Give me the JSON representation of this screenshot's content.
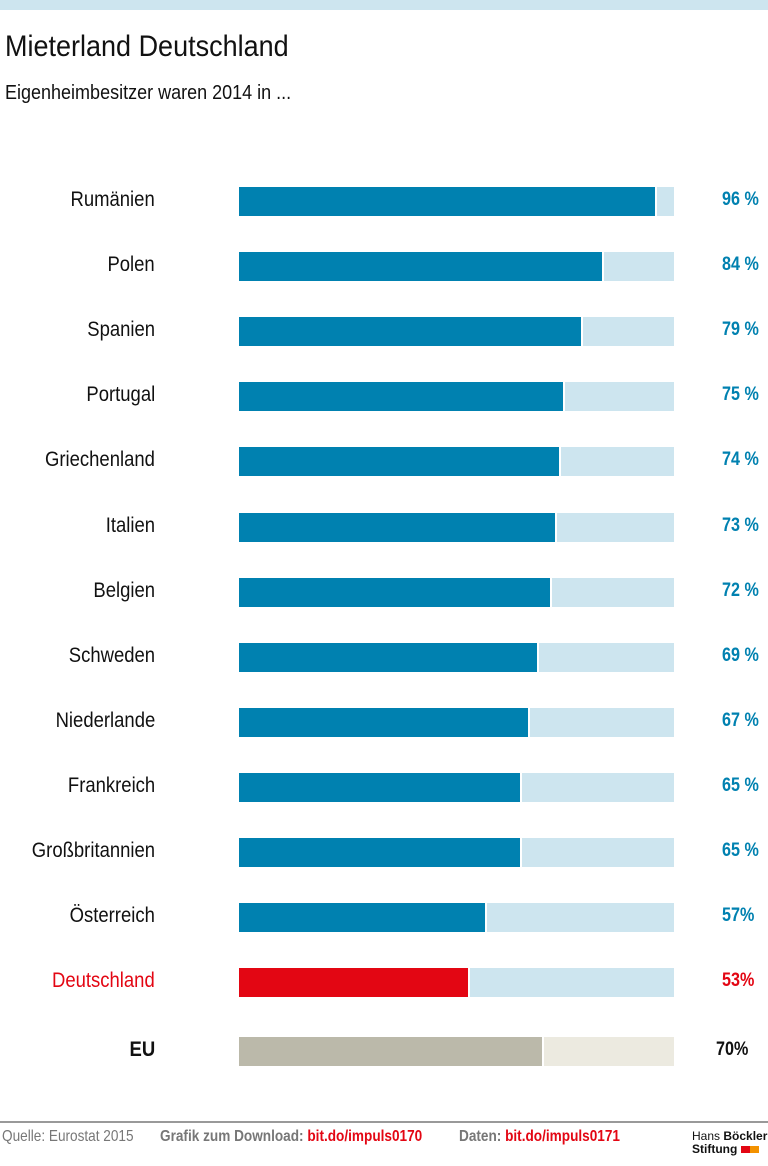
{
  "title": "Mieterland Deutschland",
  "subtitle": "Eigenheimbesitzer waren 2014 in ...",
  "chart_data": {
    "type": "bar",
    "orientation": "horizontal",
    "title": "Mieterland Deutschland",
    "subtitle": "Eigenheimbesitzer waren 2014 in ...",
    "xlim": [
      0,
      100
    ],
    "categories": [
      "Rumänien",
      "Polen",
      "Spanien",
      "Portugal",
      "Griechenland",
      "Italien",
      "Belgien",
      "Schweden",
      "Niederlande",
      "Frankreich",
      "Großbritannien",
      "Österreich",
      "Deutschland",
      "EU"
    ],
    "values": [
      96,
      84,
      79,
      75,
      74,
      73,
      72,
      69,
      67,
      65,
      65,
      57,
      53,
      70
    ],
    "labels": [
      "96 %",
      "84 %",
      "79 %",
      "75 %",
      "74 %",
      "73 %",
      "72 %",
      "69 %",
      "67 %",
      "65 %",
      "65 %",
      "57%",
      "53%",
      "70%"
    ],
    "colors": {
      "default": "#0081b0",
      "default_bg": "#cde5ef",
      "highlight": "#e30613",
      "highlight_bg": "#cde5ef",
      "eu": "#bbb9aa",
      "eu_bg": "#eceae0"
    }
  },
  "footer": {
    "source": "Quelle: Eurostat 2015",
    "download_label": "Grafik zum Download:",
    "download_link": "bit.do/impuls0170",
    "data_label": "Daten:",
    "data_link": "bit.do/impuls0171",
    "logo_line1_a": "Hans",
    "logo_line1_b": "Böckler",
    "logo_line2": "Stiftung"
  }
}
